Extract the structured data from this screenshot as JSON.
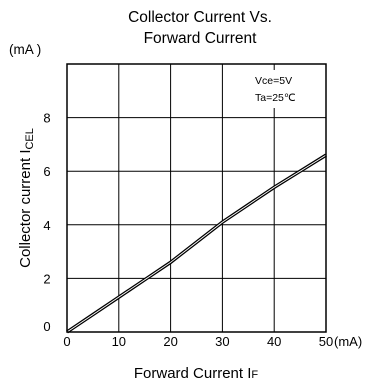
{
  "chart_data": {
    "type": "line",
    "title_line1": "Collector Current Vs.",
    "title_line2": "Forward Current",
    "y_unit": "(mA )",
    "x_unit": "(mA)",
    "xlabel": "Forward Current I",
    "xlabel_sub": "F",
    "ylabel": "Collector current I",
    "ylabel_sub": "CEL",
    "conditions": [
      "Vce=5V",
      "Ta=25℃"
    ],
    "xlim": [
      0,
      50
    ],
    "ylim": [
      0,
      10
    ],
    "x_ticks": [
      0,
      10,
      20,
      30,
      40,
      50
    ],
    "y_ticks": [
      0,
      2,
      4,
      6,
      8
    ],
    "grid": true,
    "series": [
      {
        "x": [
          0,
          5,
          10,
          15,
          20,
          25,
          30,
          35,
          40,
          45,
          50
        ],
        "values": [
          0,
          0.65,
          1.3,
          1.95,
          2.6,
          3.35,
          4.1,
          4.75,
          5.4,
          6.0,
          6.6
        ]
      }
    ]
  }
}
